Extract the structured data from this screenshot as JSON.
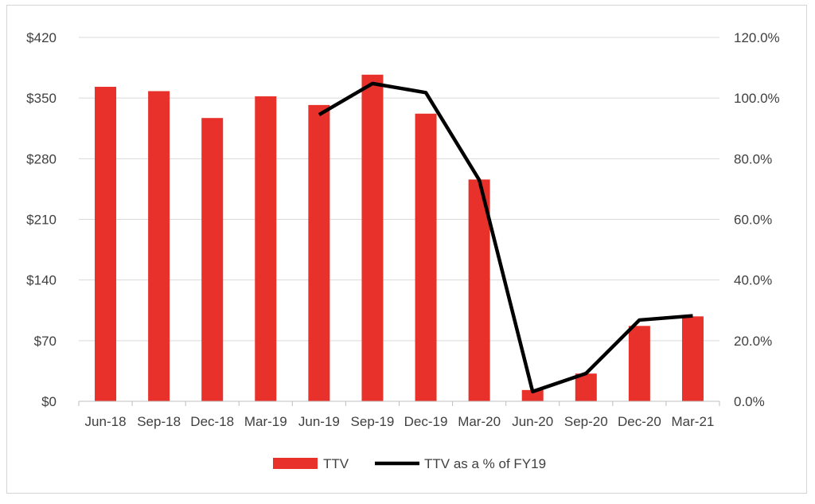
{
  "chart_data": {
    "type": "bar",
    "categories": [
      "Jun-18",
      "Sep-18",
      "Dec-18",
      "Mar-19",
      "Jun-19",
      "Sep-19",
      "Dec-19",
      "Mar-20",
      "Jun-20",
      "Sep-20",
      "Dec-20",
      "Mar-21"
    ],
    "series": [
      {
        "name": "TTV",
        "type": "bar",
        "axis": "left",
        "color": "#e8312a",
        "values": [
          363,
          358,
          327,
          352,
          342,
          377,
          332,
          256,
          13,
          32,
          87,
          98
        ]
      },
      {
        "name": "TTV as a % of FY19",
        "type": "line",
        "axis": "right",
        "color": "#000000",
        "values": [
          null,
          null,
          null,
          null,
          94.5,
          104.8,
          101.8,
          73.0,
          3.2,
          9.2,
          26.8,
          28.2
        ]
      }
    ],
    "y_left": {
      "ylim": [
        0,
        420
      ],
      "ticks": [
        0,
        70,
        140,
        210,
        280,
        350,
        420
      ],
      "tick_labels": [
        "$0",
        "$70",
        "$140",
        "$210",
        "$280",
        "$350",
        "$420"
      ]
    },
    "y_right": {
      "ylim": [
        0,
        120
      ],
      "ticks": [
        0,
        20,
        40,
        60,
        80,
        100,
        120
      ],
      "tick_labels": [
        "0.0%",
        "20.0%",
        "40.0%",
        "60.0%",
        "80.0%",
        "100.0%",
        "120.0%"
      ]
    },
    "grid": true,
    "legend_position": "bottom",
    "title": "",
    "xlabel": "",
    "ylabel": ""
  }
}
